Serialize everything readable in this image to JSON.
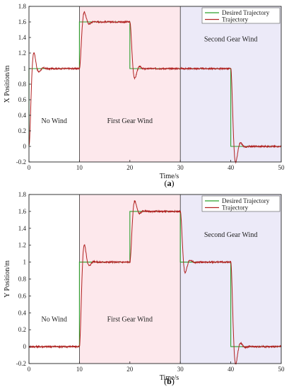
{
  "chart_data": [
    {
      "type": "line",
      "panel_label": "(a)",
      "xlabel": "Time/s",
      "ylabel": "X Position/m",
      "xlim": [
        0,
        50
      ],
      "ylim": [
        -0.2,
        1.8
      ],
      "x_ticks": [
        0,
        10,
        20,
        30,
        40,
        50
      ],
      "y_ticks": [
        -0.2,
        0,
        0.2,
        0.4,
        0.6,
        0.8,
        1,
        1.2,
        1.4,
        1.6,
        1.8
      ],
      "legend_position": "top-right",
      "regions": [
        {
          "label": "No Wind",
          "x": [
            0,
            10
          ],
          "fill": "#ffffff",
          "label_xy": [
            5,
            0.3
          ]
        },
        {
          "label": "First Gear Wind",
          "x": [
            10,
            30
          ],
          "fill": "#fde8ec",
          "label_xy": [
            20,
            0.3
          ]
        },
        {
          "label": "Second Gear Wind",
          "x": [
            30,
            50
          ],
          "fill": "#eceaf8",
          "label_xy": [
            40,
            1.35
          ]
        }
      ],
      "series": [
        {
          "name": "Desired Trajectory",
          "color": "#2ca02c",
          "steps": [
            [
              0,
              0
            ],
            [
              0,
              1
            ],
            [
              10,
              1
            ],
            [
              10,
              1.6
            ],
            [
              20,
              1.6
            ],
            [
              20,
              1
            ],
            [
              40,
              1
            ],
            [
              40,
              0
            ],
            [
              50,
              0
            ]
          ]
        },
        {
          "name": "Trajectory",
          "color": "#b22222",
          "segments": [
            {
              "t0": 0,
              "t1": 10,
              "from": 0,
              "to": 1,
              "overshoot": 0.15
            },
            {
              "t0": 10,
              "t1": 20,
              "from": 1,
              "to": 1.6,
              "overshoot": 0.12
            },
            {
              "t0": 20,
              "t1": 40,
              "from": 1.6,
              "to": 1,
              "overshoot": 0.12
            },
            {
              "t0": 40,
              "t1": 50,
              "from": 1,
              "to": 0,
              "overshoot": 0.15
            }
          ]
        }
      ]
    },
    {
      "type": "line",
      "panel_label": "(b)",
      "xlabel": "Time/s",
      "ylabel": "Y Position/m",
      "xlim": [
        0,
        50
      ],
      "ylim": [
        -0.2,
        1.8
      ],
      "x_ticks": [
        0,
        10,
        20,
        30,
        40,
        50
      ],
      "y_ticks": [
        -0.2,
        0,
        0.2,
        0.4,
        0.6,
        0.8,
        1,
        1.2,
        1.4,
        1.6,
        1.8
      ],
      "legend_position": "top-right",
      "regions": [
        {
          "label": "No Wind",
          "x": [
            0,
            10
          ],
          "fill": "#ffffff",
          "label_xy": [
            5,
            0.3
          ]
        },
        {
          "label": "First Gear Wind",
          "x": [
            10,
            30
          ],
          "fill": "#fde8ec",
          "label_xy": [
            20,
            0.3
          ]
        },
        {
          "label": "Second Gear Wind",
          "x": [
            30,
            50
          ],
          "fill": "#eceaf8",
          "label_xy": [
            40,
            1.3
          ]
        }
      ],
      "series": [
        {
          "name": "Desired Trajectory",
          "color": "#2ca02c",
          "steps": [
            [
              0,
              0
            ],
            [
              10,
              0
            ],
            [
              10,
              1
            ],
            [
              20,
              1
            ],
            [
              20,
              1.6
            ],
            [
              30,
              1.6
            ],
            [
              30,
              1
            ],
            [
              40,
              1
            ],
            [
              40,
              0
            ],
            [
              50,
              0
            ]
          ]
        },
        {
          "name": "Trajectory",
          "color": "#b22222",
          "segments": [
            {
              "t0": 0,
              "t1": 10,
              "from": 0,
              "to": 0,
              "overshoot": 0
            },
            {
              "t0": 10,
              "t1": 20,
              "from": 0,
              "to": 1,
              "overshoot": 0.15
            },
            {
              "t0": 20,
              "t1": 30,
              "from": 1,
              "to": 1.6,
              "overshoot": 0.15
            },
            {
              "t0": 30,
              "t1": 40,
              "from": 1.6,
              "to": 1,
              "overshoot": 0.15
            },
            {
              "t0": 40,
              "t1": 50,
              "from": 1,
              "to": 0,
              "overshoot": 0.15
            }
          ]
        }
      ]
    }
  ]
}
